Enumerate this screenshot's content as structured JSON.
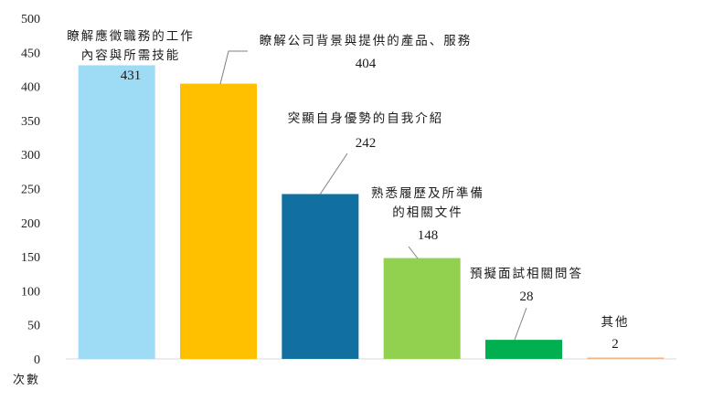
{
  "chart_data": {
    "type": "bar",
    "ylabel": "次數",
    "ylim": [
      0,
      500
    ],
    "yticks": [
      0,
      50,
      100,
      150,
      200,
      250,
      300,
      350,
      400,
      450,
      500
    ],
    "grid": false,
    "categories": [
      "瞭解應徵職務的工作內容與所需技能",
      "瞭解公司背景與提供的產品、服務",
      "突顯自身優勢的自我介紹",
      "熟悉履歷及所準備的相關文件",
      "預擬面試相關問答",
      "其他"
    ],
    "category_label_lines": [
      [
        "瞭解應徵職務的工作",
        "內容與所需技能"
      ],
      [
        "瞭解公司背景與提供的產品、服務"
      ],
      [
        "突顯自身優勢的自我介紹"
      ],
      [
        "熟悉履歷及所準備",
        "的相關文件"
      ],
      [
        "預擬面試相關問答"
      ],
      [
        "其他"
      ]
    ],
    "values": [
      431,
      404,
      242,
      148,
      28,
      2
    ],
    "colors": [
      "#9edcf6",
      "#ffc000",
      "#1170a0",
      "#92d050",
      "#00b050",
      "#f4b183"
    ]
  }
}
